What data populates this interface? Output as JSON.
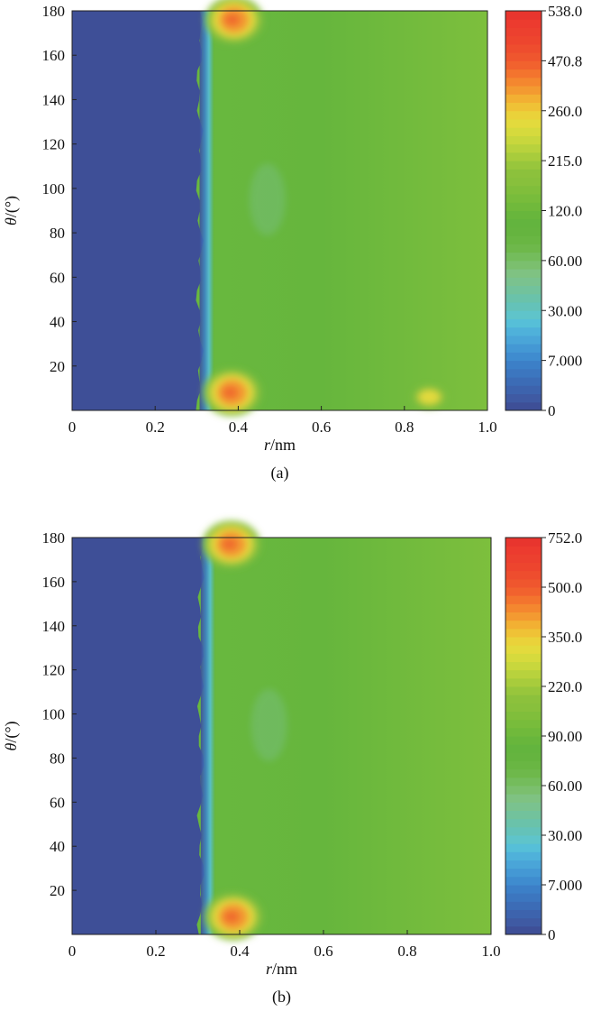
{
  "chart_data": [
    {
      "type": "heatmap",
      "caption": "(a)",
      "xlabel": "r/nm",
      "ylabel": "θ/(°)",
      "xlim": [
        0,
        1.0
      ],
      "ylim": [
        0,
        180
      ],
      "xticks": [
        "0",
        "0.2",
        "0.4",
        "0.6",
        "0.8",
        "1.0"
      ],
      "yticks": [
        "20",
        "40",
        "60",
        "80",
        "100",
        "120",
        "140",
        "160",
        "180"
      ],
      "colorbar_ticks": [
        "538.0",
        "470.8",
        "260.0",
        "215.0",
        "120.0",
        "60.00",
        "30.00",
        "7.000",
        "0"
      ],
      "grid": false,
      "regions": {
        "zero_region_r_max": 0.32,
        "background_level": 150,
        "hotspots": [
          {
            "r": 0.385,
            "theta": 8,
            "value": 470
          },
          {
            "r": 0.39,
            "theta": 176,
            "value": 520
          },
          {
            "r": 0.86,
            "theta": 6,
            "value": 230
          }
        ]
      }
    },
    {
      "type": "heatmap",
      "caption": "(b)",
      "xlabel": "r/nm",
      "ylabel": "θ/(°)",
      "xlim": [
        0,
        1.0
      ],
      "ylim": [
        0,
        180
      ],
      "xticks": [
        "0",
        "0.2",
        "0.4",
        "0.6",
        "0.8",
        "1.0"
      ],
      "yticks": [
        "20",
        "40",
        "60",
        "80",
        "100",
        "120",
        "140",
        "160",
        "180"
      ],
      "colorbar_ticks": [
        "752.0",
        "500.0",
        "350.0",
        "220.0",
        "90.00",
        "60.00",
        "30.00",
        "7.000",
        "0"
      ],
      "grid": false,
      "regions": {
        "zero_region_r_max": 0.32,
        "background_level": 150,
        "hotspots": [
          {
            "r": 0.385,
            "theta": 8,
            "value": 560
          },
          {
            "r": 0.38,
            "theta": 177,
            "value": 500
          }
        ]
      }
    }
  ]
}
